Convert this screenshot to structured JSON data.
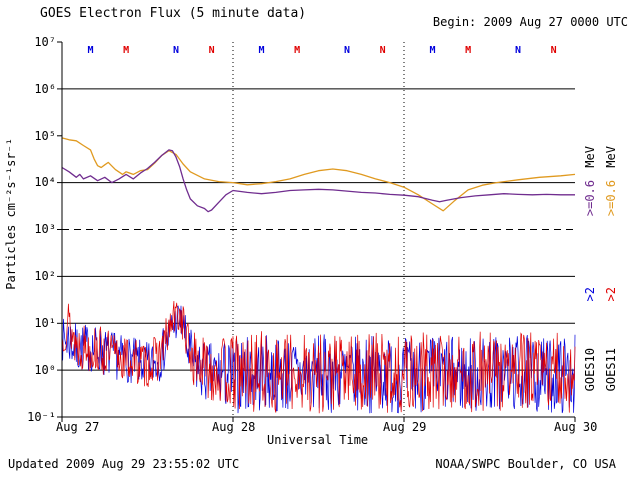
{
  "header": {
    "title": "GOES Electron Flux (5 minute data)",
    "begin": "Begin: 2009 Aug 27 0000 UTC"
  },
  "footer": {
    "updated": "Updated 2009 Aug 29 23:55:02 UTC",
    "source": "NOAA/SWPC Boulder, CO USA"
  },
  "axes": {
    "y_label": "Particles cm⁻²s⁻¹sr⁻¹",
    "x_label": "Universal Time",
    "y_ticks": [
      "10⁷",
      "10⁶",
      "10⁵",
      "10⁴",
      "10³",
      "10²",
      "10¹",
      "10⁰",
      "10⁻¹"
    ],
    "x_ticks": [
      "Aug 27",
      "Aug 28",
      "Aug 29",
      "Aug 30"
    ]
  },
  "legend": {
    "goes10": {
      "name": "GOES10",
      "e2": ">2",
      "e06": ">=0.6",
      "unit": "MeV"
    },
    "goes11": {
      "name": "GOES11",
      "e2": ">2",
      "e06": ">=0.6",
      "unit": "MeV"
    }
  },
  "chart_data": {
    "type": "line",
    "title": "GOES Electron Flux (5 minute data)",
    "xlabel": "Universal Time",
    "ylabel": "Particles cm^-2 s^-1 sr^-1",
    "x_unit": "hours since 2009-08-27 0000 UTC",
    "x_range_hours": [
      0,
      72
    ],
    "y_scale": "log10",
    "y_range": [
      0.1,
      10000000
    ],
    "x_tick_labels": [
      "Aug 27",
      "Aug 28",
      "Aug 29",
      "Aug 30"
    ],
    "grid": {
      "solid_hlines": [
        1000000.0,
        10000.0,
        100,
        10,
        1
      ],
      "dashed_hlines": [
        1000
      ],
      "dotted_vlines_hours": [
        24,
        48
      ]
    },
    "series": [
      {
        "name": "GOES11 >=0.6 MeV",
        "color": "#e09a20",
        "style": "line",
        "points": [
          [
            0,
            90000.0
          ],
          [
            1,
            82000.0
          ],
          [
            2,
            78000.0
          ],
          [
            3,
            62000.0
          ],
          [
            4,
            50000.0
          ],
          [
            4.5,
            32000.0
          ],
          [
            5,
            23000.0
          ],
          [
            5.5,
            21000.0
          ],
          [
            6,
            24000.0
          ],
          [
            6.5,
            27000.0
          ],
          [
            7.5,
            19000.0
          ],
          [
            8.5,
            15000.0
          ],
          [
            9,
            17000.0
          ],
          [
            10,
            15000.0
          ],
          [
            11,
            18000.0
          ],
          [
            12,
            19000.0
          ],
          [
            13,
            26000.0
          ],
          [
            14,
            38000.0
          ],
          [
            15,
            48000.0
          ],
          [
            16,
            40000.0
          ],
          [
            17,
            25000.0
          ],
          [
            18,
            17000.0
          ],
          [
            20,
            12000.0
          ],
          [
            22,
            10500.0
          ],
          [
            24,
            10000.0
          ],
          [
            26,
            9000.0
          ],
          [
            28,
            9500.0
          ],
          [
            30,
            10500.0
          ],
          [
            32,
            12000.0
          ],
          [
            34,
            15000.0
          ],
          [
            36,
            18000.0
          ],
          [
            38,
            19500.0
          ],
          [
            40,
            18000.0
          ],
          [
            42,
            15000.0
          ],
          [
            44,
            12000.0
          ],
          [
            46,
            10000.0
          ],
          [
            48,
            8000.0
          ],
          [
            50,
            5500.0
          ],
          [
            52,
            3500.0
          ],
          [
            53.5,
            2500.0
          ],
          [
            55,
            4000.0
          ],
          [
            57,
            7000.0
          ],
          [
            59,
            8800.0
          ],
          [
            61,
            10000.0
          ],
          [
            64,
            11500.0
          ],
          [
            67,
            13000.0
          ],
          [
            70,
            14000.0
          ],
          [
            72,
            15000.0
          ]
        ]
      },
      {
        "name": "GOES10 >=0.6 MeV",
        "color": "#702d8f",
        "style": "line",
        "points": [
          [
            0,
            21000.0
          ],
          [
            1,
            17000.0
          ],
          [
            2,
            13000.0
          ],
          [
            2.5,
            15000.0
          ],
          [
            3,
            12000.0
          ],
          [
            4,
            14000.0
          ],
          [
            5,
            11000.0
          ],
          [
            6,
            13000.0
          ],
          [
            7,
            10000.0
          ],
          [
            8,
            12000.0
          ],
          [
            9,
            15000.0
          ],
          [
            10,
            12000.0
          ],
          [
            11,
            16000.0
          ],
          [
            12,
            20000.0
          ],
          [
            13,
            27000.0
          ],
          [
            14,
            38000.0
          ],
          [
            15,
            50000.0
          ],
          [
            15.5,
            48000.0
          ],
          [
            16,
            35000.0
          ],
          [
            16.5,
            22000.0
          ],
          [
            17,
            12000.0
          ],
          [
            17.5,
            7000.0
          ],
          [
            18,
            4500.0
          ],
          [
            19,
            3200.0
          ],
          [
            20,
            2800.0
          ],
          [
            20.5,
            2400.0
          ],
          [
            21,
            2600.0
          ],
          [
            22,
            3800.0
          ],
          [
            23,
            5500.0
          ],
          [
            24,
            6800.0
          ],
          [
            26,
            6200.0
          ],
          [
            28,
            5800.0
          ],
          [
            30,
            6200.0
          ],
          [
            32,
            6800.0
          ],
          [
            34,
            7000.0
          ],
          [
            36,
            7200.0
          ],
          [
            38,
            7000.0
          ],
          [
            40,
            6600.0
          ],
          [
            42,
            6200.0
          ],
          [
            44,
            6000.0
          ],
          [
            46,
            5600.0
          ],
          [
            48,
            5400.0
          ],
          [
            50,
            5000.0
          ],
          [
            52,
            4200.0
          ],
          [
            53,
            3900.0
          ],
          [
            54,
            4200.0
          ],
          [
            56,
            4800.0
          ],
          [
            58,
            5200.0
          ],
          [
            60,
            5500.0
          ],
          [
            62,
            5800.0
          ],
          [
            64,
            5600.0
          ],
          [
            66,
            5500.0
          ],
          [
            68,
            5600.0
          ],
          [
            70,
            5500.0
          ],
          [
            72,
            5500.0
          ]
        ]
      },
      {
        "name": "GOES10 >2 MeV",
        "color": "#0000dd",
        "style": "noise",
        "seed": 7,
        "envelope": [
          [
            0,
            1.5,
            12
          ],
          [
            1,
            1.2,
            18
          ],
          [
            2,
            0.8,
            10
          ],
          [
            4,
            0.9,
            10
          ],
          [
            6,
            0.7,
            8
          ],
          [
            8,
            0.6,
            6
          ],
          [
            10,
            0.5,
            5
          ],
          [
            12,
            0.4,
            4
          ],
          [
            13.5,
            0.5,
            5
          ],
          [
            14.5,
            1,
            10
          ],
          [
            15.5,
            3,
            25
          ],
          [
            16.3,
            5,
            32
          ],
          [
            17,
            3,
            25
          ],
          [
            17.6,
            0.8,
            10
          ],
          [
            18.5,
            0.3,
            6
          ],
          [
            20,
            0.2,
            4
          ],
          [
            22,
            0.15,
            4
          ],
          [
            24,
            0.12,
            5
          ],
          [
            28,
            0.12,
            6
          ],
          [
            32,
            0.12,
            5
          ],
          [
            36,
            0.12,
            6
          ],
          [
            40,
            0.12,
            5
          ],
          [
            44,
            0.12,
            6
          ],
          [
            48,
            0.12,
            5
          ],
          [
            52,
            0.12,
            6
          ],
          [
            56,
            0.12,
            5
          ],
          [
            60,
            0.12,
            6
          ],
          [
            64,
            0.12,
            6
          ],
          [
            68,
            0.12,
            5
          ],
          [
            72,
            0.12,
            6
          ]
        ]
      },
      {
        "name": "GOES11 >2 MeV",
        "color": "#e00000",
        "style": "noise",
        "seed": 13,
        "envelope": [
          [
            0,
            2,
            10
          ],
          [
            0.7,
            3,
            42
          ],
          [
            1.2,
            2,
            30
          ],
          [
            2,
            1,
            12
          ],
          [
            4,
            0.9,
            10
          ],
          [
            6,
            0.7,
            8
          ],
          [
            8,
            0.6,
            6
          ],
          [
            10,
            0.5,
            5
          ],
          [
            12,
            0.4,
            4
          ],
          [
            13.5,
            0.6,
            6
          ],
          [
            14.5,
            1.5,
            12
          ],
          [
            15.5,
            4,
            30
          ],
          [
            16.3,
            6,
            42
          ],
          [
            17,
            4,
            30
          ],
          [
            17.6,
            1,
            12
          ],
          [
            18.5,
            0.4,
            7
          ],
          [
            20,
            0.25,
            5
          ],
          [
            22,
            0.18,
            5
          ],
          [
            24,
            0.12,
            6
          ],
          [
            28,
            0.12,
            7
          ],
          [
            32,
            0.12,
            6
          ],
          [
            36,
            0.12,
            7
          ],
          [
            40,
            0.12,
            6
          ],
          [
            44,
            0.12,
            7
          ],
          [
            48,
            0.12,
            6
          ],
          [
            52,
            0.12,
            7
          ],
          [
            56,
            0.12,
            6
          ],
          [
            60,
            0.12,
            7
          ],
          [
            64,
            0.12,
            7
          ],
          [
            68,
            0.12,
            6
          ],
          [
            72,
            0.12,
            7
          ]
        ]
      }
    ],
    "markers": [
      {
        "label": "M",
        "satellite": "GOES10",
        "color": "#0000dd",
        "hour": 4
      },
      {
        "label": "M",
        "satellite": "GOES11",
        "color": "#e00000",
        "hour": 9
      },
      {
        "label": "N",
        "satellite": "GOES10",
        "color": "#0000dd",
        "hour": 16
      },
      {
        "label": "N",
        "satellite": "GOES11",
        "color": "#e00000",
        "hour": 21
      },
      {
        "label": "M",
        "satellite": "GOES10",
        "color": "#0000dd",
        "hour": 28
      },
      {
        "label": "M",
        "satellite": "GOES11",
        "color": "#e00000",
        "hour": 33
      },
      {
        "label": "N",
        "satellite": "GOES10",
        "color": "#0000dd",
        "hour": 40
      },
      {
        "label": "N",
        "satellite": "GOES11",
        "color": "#e00000",
        "hour": 45
      },
      {
        "label": "M",
        "satellite": "GOES10",
        "color": "#0000dd",
        "hour": 52
      },
      {
        "label": "M",
        "satellite": "GOES11",
        "color": "#e00000",
        "hour": 57
      },
      {
        "label": "N",
        "satellite": "GOES10",
        "color": "#0000dd",
        "hour": 64
      },
      {
        "label": "N",
        "satellite": "GOES11",
        "color": "#e00000",
        "hour": 69
      }
    ]
  }
}
